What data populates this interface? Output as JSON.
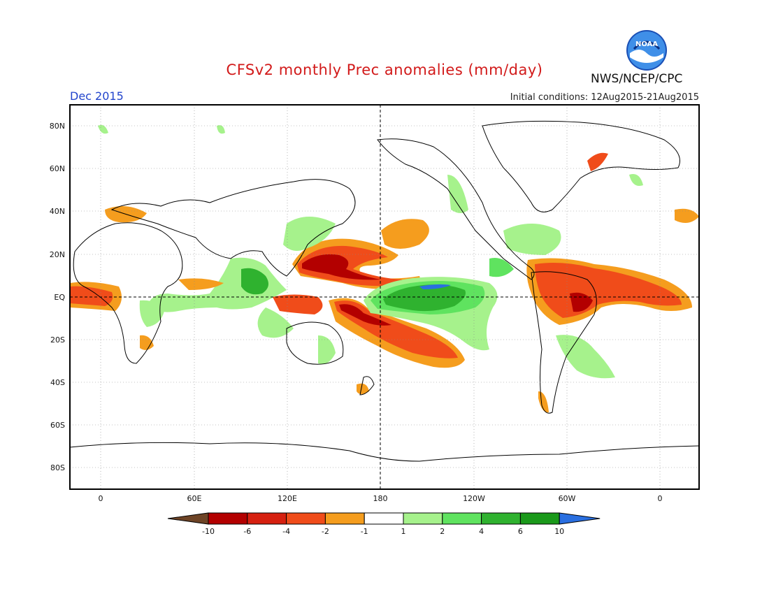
{
  "title": "CFSv2 monthly Prec anomalies (mm/day)",
  "month": "Dec 2015",
  "initial_conditions": "Initial conditions: 12Aug2015-21Aug2015",
  "agency": "NWS/NCEP/CPC",
  "logo_text": "NOAA",
  "latitude_labels": [
    "80N",
    "60N",
    "40N",
    "20N",
    "EQ",
    "20S",
    "40S",
    "60S",
    "80S"
  ],
  "longitude_labels": [
    "0",
    "60E",
    "120E",
    "180",
    "120W",
    "60W",
    "0"
  ],
  "colorbar": {
    "labels": [
      "-10",
      "-6",
      "-4",
      "-2",
      "-1",
      "1",
      "2",
      "4",
      "6",
      "10"
    ],
    "colors": [
      "#6e4426",
      "#b30000",
      "#d62010",
      "#f04c1a",
      "#f59d1e",
      "#ffffff",
      "#a6f28c",
      "#5fe35f",
      "#2fb22f",
      "#1a991a",
      "#2a6fe0"
    ]
  },
  "colors": {
    "dark_red": "#b30000",
    "red": "#f04c1a",
    "orange": "#f59d1e",
    "light_green": "#a6f28c",
    "green": "#5fe35f",
    "dark_green": "#2fb22f",
    "blue": "#2a6fe0"
  }
}
